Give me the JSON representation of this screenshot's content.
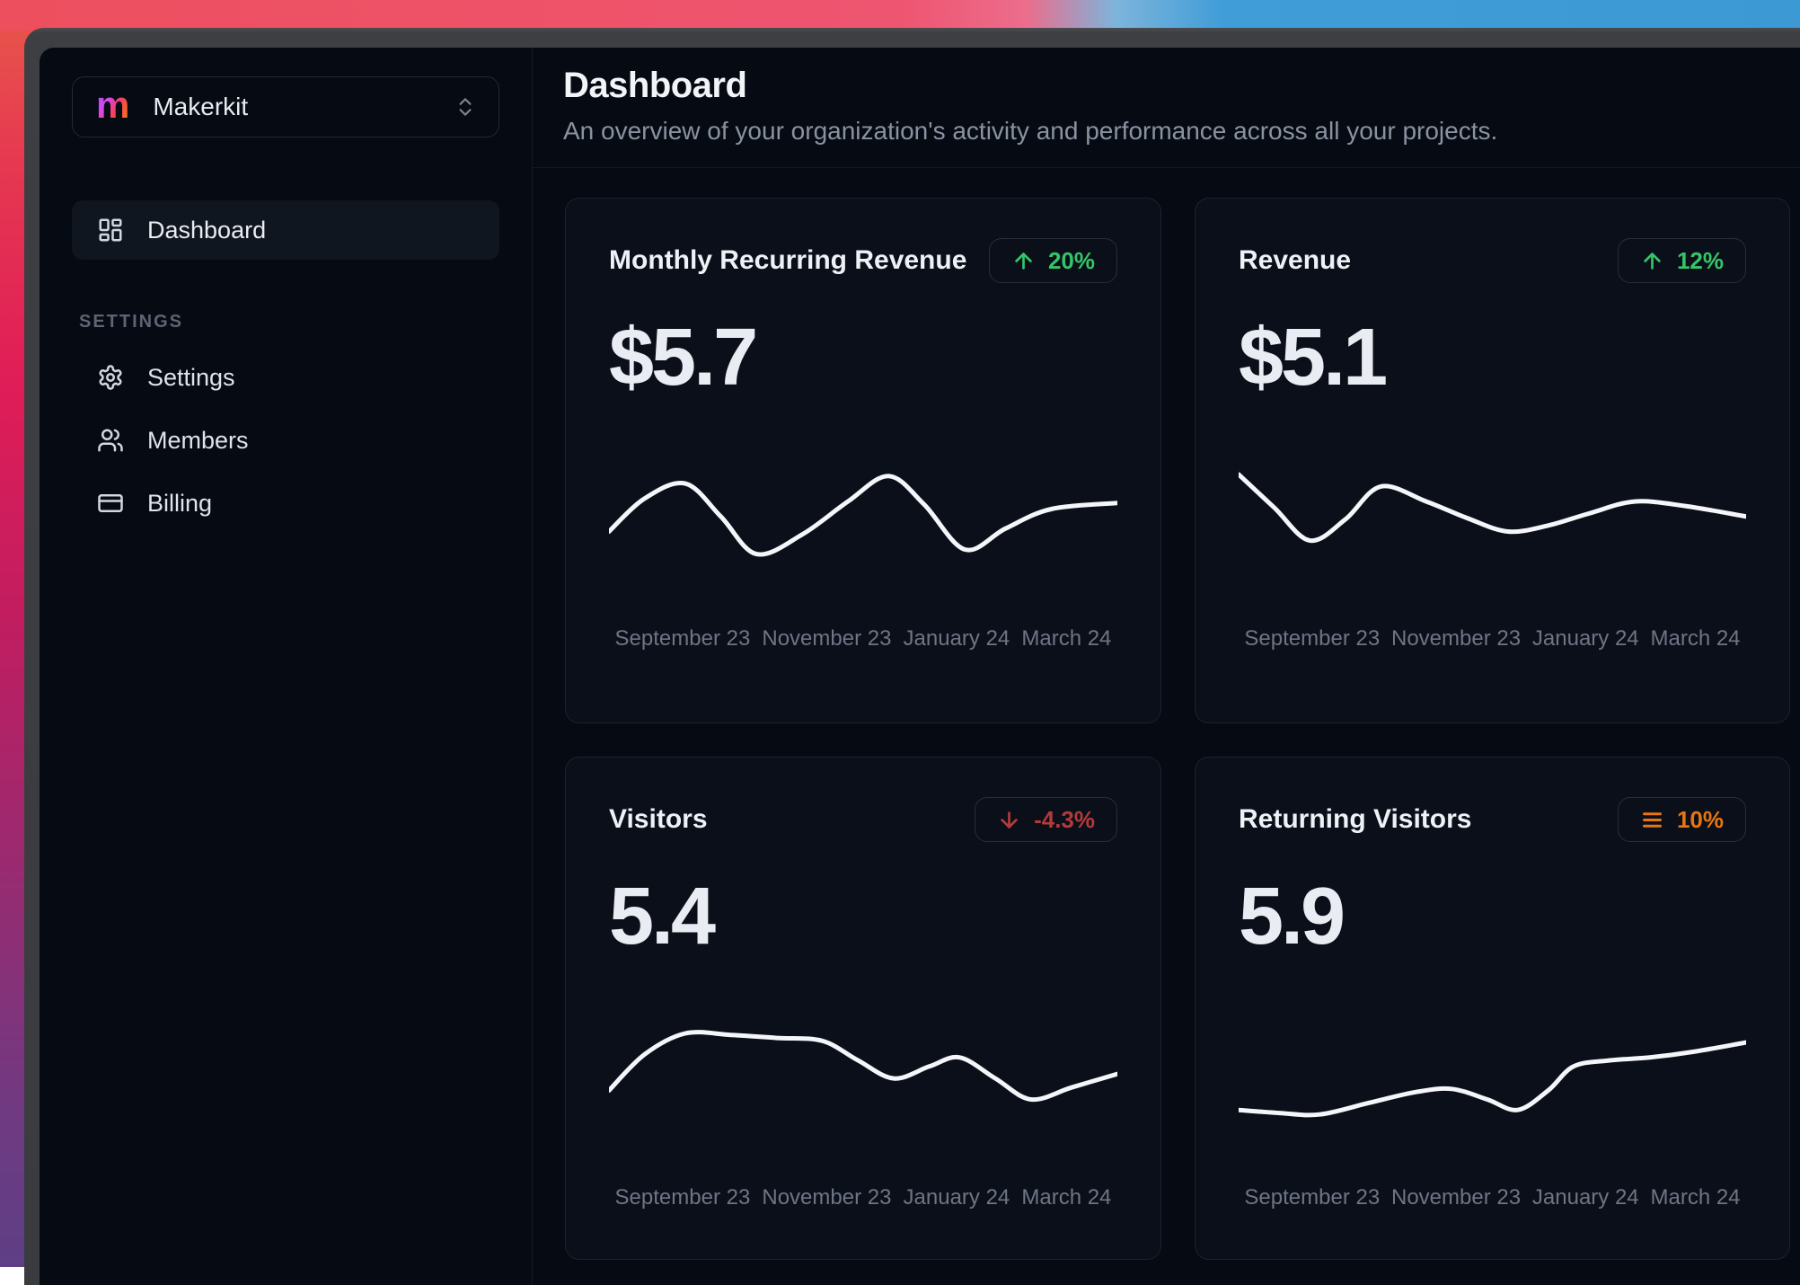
{
  "sidebar": {
    "workspace": {
      "logo_letter": "m",
      "name": "Makerkit",
      "selector_icon": "chevrons-up-down-icon"
    },
    "nav": [
      {
        "label": "Dashboard",
        "icon": "layout-dashboard-icon",
        "active": true
      }
    ],
    "section_label": "SETTINGS",
    "settings_nav": [
      {
        "label": "Settings",
        "icon": "gear-icon"
      },
      {
        "label": "Members",
        "icon": "users-icon"
      },
      {
        "label": "Billing",
        "icon": "credit-card-icon"
      }
    ]
  },
  "header": {
    "title": "Dashboard",
    "subtitle": "An overview of your organization's activity and performance across all your projects."
  },
  "cards": [
    {
      "title": "Monthly Recurring Revenue",
      "value": "$5.7",
      "trend": "up",
      "trend_label": "20%",
      "trend_color": "#35c568"
    },
    {
      "title": "Revenue",
      "value": "$5.1",
      "trend": "up",
      "trend_label": "12%",
      "trend_color": "#35c568"
    },
    {
      "title": "Visitors",
      "value": "5.4",
      "trend": "down",
      "trend_label": "-4.3%",
      "trend_color": "#b43a3a"
    },
    {
      "title": "Returning Visitors",
      "value": "5.9",
      "trend": "neutral",
      "trend_label": "10%",
      "trend_color": "#e87511"
    }
  ],
  "chart_data": [
    {
      "type": "line",
      "title": "Monthly Recurring Revenue",
      "stat": "$5.7",
      "trend": "+20%",
      "x_labels": [
        "September 23",
        "November 23",
        "January 24",
        "March 24"
      ],
      "x": [
        0,
        0.07,
        0.15,
        0.22,
        0.29,
        0.38,
        0.47,
        0.55,
        0.62,
        0.7,
        0.78,
        0.87,
        1
      ],
      "values": [
        50,
        72,
        82,
        60,
        35,
        48,
        70,
        87,
        68,
        38,
        52,
        65,
        69
      ],
      "ylim": [
        0,
        100
      ],
      "grid": false,
      "line_color": "#f4f6fa"
    },
    {
      "type": "line",
      "title": "Revenue",
      "stat": "$5.1",
      "trend": "+12%",
      "x_labels": [
        "September 23",
        "November 23",
        "January 24",
        "March 24"
      ],
      "x": [
        0,
        0.07,
        0.14,
        0.21,
        0.28,
        0.37,
        0.45,
        0.53,
        0.61,
        0.69,
        0.78,
        0.88,
        1
      ],
      "values": [
        88,
        66,
        44,
        58,
        80,
        70,
        59,
        50,
        54,
        62,
        70,
        67,
        60
      ],
      "ylim": [
        0,
        100
      ],
      "grid": false,
      "line_color": "#f4f6fa"
    },
    {
      "type": "line",
      "title": "Visitors",
      "stat": "5.4",
      "trend": "-4.3%",
      "x_labels": [
        "September 23",
        "November 23",
        "January 24",
        "March 24"
      ],
      "x": [
        0,
        0.07,
        0.15,
        0.24,
        0.33,
        0.42,
        0.49,
        0.56,
        0.63,
        0.69,
        0.76,
        0.83,
        0.91,
        1
      ],
      "values": [
        50,
        74,
        88,
        87,
        85,
        83,
        70,
        58,
        66,
        72,
        58,
        44,
        52,
        61
      ],
      "ylim": [
        0,
        100
      ],
      "grid": false,
      "line_color": "#f4f6fa"
    },
    {
      "type": "line",
      "title": "Returning Visitors",
      "stat": "5.9",
      "trend": "+10%",
      "x_labels": [
        "September 23",
        "November 23",
        "January 24",
        "March 24"
      ],
      "x": [
        0,
        0.08,
        0.16,
        0.26,
        0.35,
        0.42,
        0.49,
        0.55,
        0.61,
        0.66,
        0.73,
        0.81,
        0.9,
        1
      ],
      "values": [
        37,
        35,
        34,
        42,
        49,
        51,
        44,
        37,
        50,
        66,
        70,
        72,
        76,
        82
      ],
      "ylim": [
        0,
        100
      ],
      "grid": false,
      "line_color": "#f4f6fa"
    }
  ]
}
